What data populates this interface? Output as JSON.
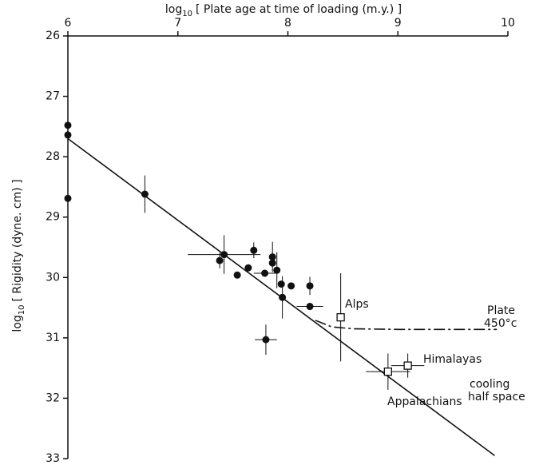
{
  "chart_data": {
    "type": "scatter",
    "xlabel": {
      "log": "log",
      "sub": "10",
      "text": "[ Plate age at time of loading (m.y.) ]"
    },
    "ylabel": {
      "log": "log",
      "sub": "10",
      "text": "[ Rigidity (dyne. cm) ]"
    },
    "xlim": [
      6,
      10
    ],
    "xticks": [
      6,
      7,
      8,
      9,
      10
    ],
    "ylim": [
      26,
      33
    ],
    "yticks": [
      26,
      27,
      28,
      29,
      30,
      31,
      32,
      33
    ],
    "y_inverted": true,
    "series": [
      {
        "marker": "circle",
        "color": "#111111",
        "x": [
          6,
          6,
          6,
          6.7,
          7.38,
          7.42,
          7.54,
          7.64,
          7.69,
          7.79,
          7.86,
          7.86,
          7.9,
          7.94,
          7.95,
          8.03,
          7.8,
          8.2,
          8.2
        ],
        "y": [
          27.48,
          27.64,
          28.69,
          28.62,
          29.72,
          29.62,
          29.96,
          29.84,
          29.55,
          29.93,
          29.66,
          29.76,
          29.88,
          30.11,
          30.33,
          30.14,
          31.03,
          30.14,
          30.48
        ],
        "xerr": [
          null,
          null,
          null,
          null,
          null,
          0.33,
          null,
          null,
          null,
          0.1,
          null,
          null,
          null,
          null,
          null,
          null,
          0.1,
          null,
          0.12
        ],
        "yerr": [
          null,
          null,
          null,
          0.31,
          0.13,
          0.32,
          null,
          null,
          0.13,
          null,
          0.25,
          null,
          0.3,
          null,
          0.35,
          null,
          0.25,
          0.15,
          null
        ]
      },
      {
        "marker": "square-open",
        "color": "#111111",
        "x": [
          8.48,
          9.09,
          8.91
        ],
        "y": [
          30.66,
          31.46,
          31.56
        ],
        "xerr": [
          null,
          0.15,
          0.2
        ],
        "yerr": [
          0.73,
          0.2,
          0.3
        ]
      }
    ],
    "lines": [
      {
        "style": "solid",
        "x": [
          6,
          9.88
        ],
        "y": [
          27.7,
          32.95
        ]
      },
      {
        "style": "dashdot",
        "x": [
          8.25,
          8.4,
          8.6,
          9,
          9.9
        ],
        "y": [
          30.71,
          30.82,
          30.85,
          30.86,
          30.86
        ]
      }
    ],
    "annotations": [
      "Alps",
      "Himalayas",
      "Appalachians",
      "Plate",
      "450°c",
      "cooling",
      "half space"
    ]
  }
}
